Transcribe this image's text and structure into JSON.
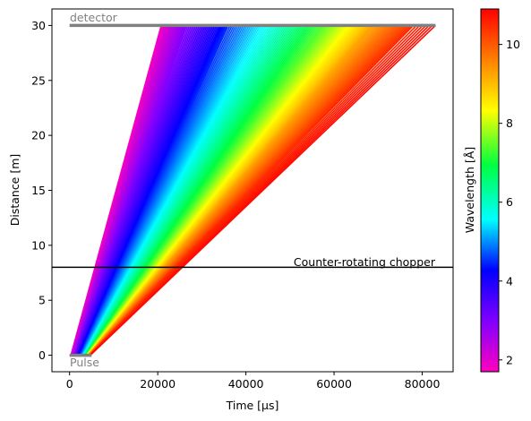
{
  "chart_data": {
    "type": "line",
    "xlabel": "Time [µs]",
    "ylabel": "Distance [m]",
    "xlim": [
      -4000,
      87000
    ],
    "ylim": [
      -1.5,
      31.5
    ],
    "xticks": [
      0,
      20000,
      40000,
      60000,
      80000
    ],
    "xtick_labels": [
      "0",
      "20000",
      "40000",
      "60000",
      "80000"
    ],
    "yticks": [
      0,
      5,
      10,
      15,
      20,
      25,
      30
    ],
    "ytick_labels": [
      "0",
      "5",
      "10",
      "15",
      "20",
      "25",
      "30"
    ],
    "grid": false,
    "detector": {
      "label": "detector",
      "distance": 30,
      "t_start": 0,
      "t_end": 83000,
      "color": "#808080"
    },
    "pulse": {
      "label": "Pulse",
      "distance": 0,
      "t_start": 0,
      "t_end": 5000,
      "color": "#808080"
    },
    "chopper": {
      "label": "Counter-rotating chopper",
      "distance": 8,
      "t_start": -4000,
      "t_end": 87000,
      "color": "#000000"
    },
    "colorbar": {
      "label": "Wavelength [Å]",
      "range": [
        1.7,
        10.9
      ],
      "ticks": [
        2,
        4,
        6,
        8,
        10
      ],
      "tick_labels": [
        "2",
        "4",
        "6",
        "8",
        "10"
      ],
      "colormap": "gist_rainbow_r"
    },
    "neutron_series": {
      "description_free": true,
      "wavelength_min": 1.7,
      "wavelength_max": 10.9,
      "samples": [
        {
          "wl": 1.8,
          "t0": 300,
          "t_det": 20800
        },
        {
          "wl": 2.2,
          "t0": 600,
          "t_det": 22500
        },
        {
          "wl": 2.6,
          "t0": 900,
          "t_det": 24500
        },
        {
          "wl": 3.0,
          "t0": 1200,
          "t_det": 26500
        },
        {
          "wl": 3.4,
          "t0": 1500,
          "t_det": 29000
        },
        {
          "wl": 3.8,
          "t0": 1800,
          "t_det": 31500
        },
        {
          "wl": 4.2,
          "t0": 2100,
          "t_det": 34000
        },
        {
          "wl": 4.5,
          "t0": 2400,
          "t_det": 36000
        },
        {
          "wl": 4.9,
          "t0": 2700,
          "t_det": 39000
        },
        {
          "wl": 5.3,
          "t0": 3000,
          "t_det": 42000
        },
        {
          "wl": 5.7,
          "t0": 3200,
          "t_det": 45000
        },
        {
          "wl": 6.1,
          "t0": 3400,
          "t_det": 48000
        },
        {
          "wl": 6.5,
          "t0": 3600,
          "t_det": 51000
        },
        {
          "wl": 6.9,
          "t0": 3700,
          "t_det": 54000
        },
        {
          "wl": 7.3,
          "t0": 3800,
          "t_det": 57000
        },
        {
          "wl": 7.7,
          "t0": 3900,
          "t_det": 59500
        },
        {
          "wl": 8.1,
          "t0": 4000,
          "t_det": 62000
        },
        {
          "wl": 8.5,
          "t0": 4100,
          "t_det": 64500
        },
        {
          "wl": 8.9,
          "t0": 4200,
          "t_det": 67000
        },
        {
          "wl": 9.3,
          "t0": 4300,
          "t_det": 69000
        },
        {
          "wl": 9.7,
          "t0": 4400,
          "t_det": 72000
        },
        {
          "wl": 10.1,
          "t0": 4500,
          "t_det": 75000
        },
        {
          "wl": 10.5,
          "t0": 4600,
          "t_det": 78000
        },
        {
          "wl": 10.8,
          "t0": 4700,
          "t_det": 83000
        }
      ]
    }
  }
}
